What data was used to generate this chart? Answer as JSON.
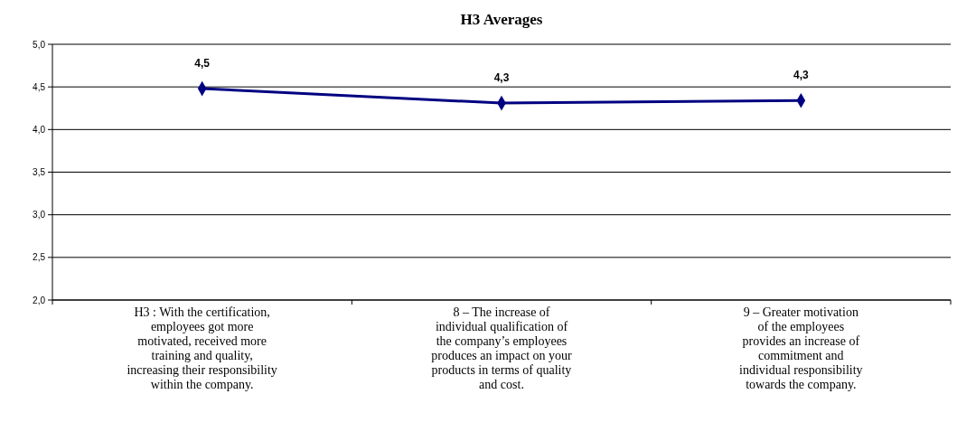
{
  "chart_data": {
    "type": "line",
    "title": "H3 Averages",
    "categories": [
      "H3 : With the certification,\nemployees got more\nmotivated, received more\ntraining and quality,\nincreasing their responsibility\nwithin the company.",
      "8 – The increase of\nindividual qualification of\nthe company’s employees\nproduces an impact on your\nproducts in terms of quality\nand cost.",
      "9 – Greater motivation\nof the employees\nprovides an increase of\ncommitment and\nindividual responsibility\ntowards the company."
    ],
    "series": [
      {
        "color": "#000080",
        "values": [
          4.48,
          4.31,
          4.34
        ],
        "value_labels": [
          "4,5",
          "4,3",
          "4,3"
        ]
      }
    ],
    "ylim": [
      2,
      5
    ],
    "yticks": [
      {
        "value": 2,
        "label": "2,0"
      },
      {
        "value": 2.5,
        "label": "2,5"
      },
      {
        "value": 3,
        "label": "3,0"
      },
      {
        "value": 3.5,
        "label": "3,5"
      },
      {
        "value": 4,
        "label": "4,0"
      },
      {
        "value": 4.5,
        "label": "4,5"
      },
      {
        "value": 5,
        "label": "5,0"
      }
    ],
    "grid": "y",
    "marker": "diamond",
    "line_style": "solid"
  }
}
